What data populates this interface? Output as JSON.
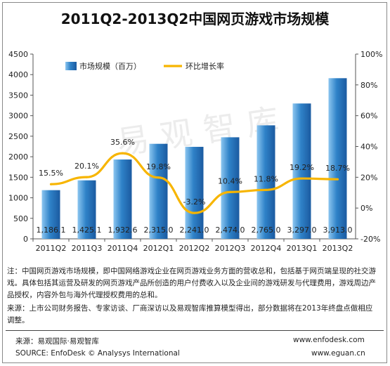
{
  "title": "2011Q2-2013Q2中国网页游戏市场规模",
  "watermark": "易观智库",
  "chart_data": {
    "type": "bar+line",
    "categories": [
      "2011Q2",
      "2011Q3",
      "2011Q4",
      "2012Q1",
      "2012Q2",
      "2012Q3",
      "2012Q4",
      "2013Q1",
      "2013Q2"
    ],
    "series": [
      {
        "name": "市场规模（百万）",
        "type": "bar",
        "axis": "left",
        "values": [
          1186.1,
          1425.1,
          1932.6,
          2315.0,
          2241.0,
          2474.0,
          2765.0,
          3297.0,
          3913.0
        ],
        "labels": [
          "1,186.1",
          "1,425.1",
          "1,932.6",
          "2,315.0",
          "2,241.0",
          "2,474.0",
          "2,765.0",
          "3,297.0",
          "3,913.0"
        ],
        "color": "#2f7fc6"
      },
      {
        "name": "环比增长率",
        "type": "line",
        "axis": "right",
        "values": [
          15.5,
          20.1,
          35.6,
          19.8,
          -3.2,
          10.4,
          11.8,
          19.2,
          18.7
        ],
        "labels": [
          "15.5%",
          "20.1%",
          "35.6%",
          "19.8%",
          "-3.2%",
          "10.4%",
          "11.8%",
          "19.2%",
          "18.7%"
        ],
        "color": "#f7b500"
      }
    ],
    "y_left": {
      "ylim": [
        0,
        4500
      ],
      "ticks": [
        "0",
        "500",
        "1000",
        "1500",
        "2000",
        "2500",
        "3000",
        "3500",
        "4000",
        "4500"
      ]
    },
    "y_right": {
      "ylim": [
        -20,
        100
      ],
      "ticks": [
        "-20%",
        "0%",
        "20%",
        "40%",
        "60%",
        "80%",
        "100%"
      ]
    },
    "grid": false,
    "legend": "top-left"
  },
  "note": "注：中国网页游戏市场规模，即中国网络游戏企业在网页游戏业务方面的营收总和，包括基于网页端呈现的社交游戏。具体包括其运营及研发的网页游戏产品所创造的用户付费收入以及企业间的游戏研发与代理费用，游戏周边产品授权，内容外包与海外代理授权费用的总和。",
  "source_cn": "来源：上市公司财务报告、专家访谈、厂商深访以及易观智库推算模型得出，部分数据将在2013年终盘点做相应调整。",
  "footer": {
    "source_line_1": "来源：易观国际·易观智库",
    "source_line_2": "SOURCE: EnfoDesk © Analysys International",
    "url_1": "www.enfodesk.com",
    "url_2": "www.eguan.cn"
  }
}
